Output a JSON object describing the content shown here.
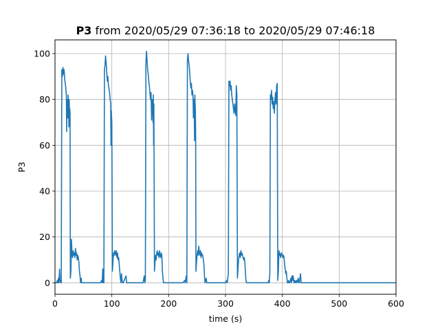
{
  "chart_data": {
    "type": "line",
    "title": {
      "bold": "P3",
      "rest": " from 2020/05/29 07:36:18 to 2020/05/29 07:46:18"
    },
    "xlabel": "time (s)",
    "ylabel": "P3",
    "xlim": [
      0,
      600
    ],
    "ylim": [
      -5,
      106
    ],
    "xticks": [
      0,
      100,
      200,
      300,
      400,
      500,
      600
    ],
    "yticks": [
      0,
      20,
      40,
      60,
      80,
      100
    ],
    "grid": true,
    "line_color": "#1f77b4",
    "series": [
      {
        "points": [
          [
            0,
            0
          ],
          [
            3,
            0
          ],
          [
            4,
            1
          ],
          [
            5,
            0
          ],
          [
            6,
            2
          ],
          [
            7,
            0
          ],
          [
            8,
            6
          ],
          [
            9,
            1
          ],
          [
            10,
            0
          ],
          [
            11,
            0
          ],
          [
            12,
            93
          ],
          [
            13,
            90
          ],
          [
            14,
            94
          ],
          [
            15,
            91
          ],
          [
            16,
            93
          ],
          [
            17,
            89
          ],
          [
            18,
            87
          ],
          [
            19,
            85
          ],
          [
            20,
            82
          ],
          [
            20.5,
            66
          ],
          [
            21,
            80
          ],
          [
            22,
            78
          ],
          [
            22.5,
            72
          ],
          [
            23,
            82
          ],
          [
            24,
            75
          ],
          [
            24.5,
            68
          ],
          [
            25,
            80
          ],
          [
            25.5,
            73
          ],
          [
            26,
            76
          ],
          [
            26.5,
            74
          ],
          [
            27,
            2
          ],
          [
            28,
            5
          ],
          [
            29,
            19
          ],
          [
            30,
            12
          ],
          [
            31,
            11
          ],
          [
            32,
            14
          ],
          [
            33,
            12
          ],
          [
            34,
            13
          ],
          [
            35,
            11
          ],
          [
            36,
            15
          ],
          [
            37,
            12
          ],
          [
            38,
            13
          ],
          [
            39,
            10
          ],
          [
            40,
            12
          ],
          [
            41,
            11
          ],
          [
            42,
            9
          ],
          [
            43,
            5
          ],
          [
            44,
            3
          ],
          [
            45,
            0
          ],
          [
            46,
            2
          ],
          [
            47,
            0
          ],
          [
            50,
            0
          ],
          [
            55,
            0
          ],
          [
            60,
            0
          ],
          [
            65,
            0
          ],
          [
            70,
            0
          ],
          [
            75,
            0
          ],
          [
            80,
            0
          ],
          [
            82,
            1
          ],
          [
            83,
            0
          ],
          [
            84,
            6
          ],
          [
            85,
            0
          ],
          [
            86,
            0
          ],
          [
            87,
            93
          ],
          [
            88,
            95
          ],
          [
            89,
            99
          ],
          [
            90,
            96
          ],
          [
            91,
            92
          ],
          [
            92,
            88
          ],
          [
            93,
            90
          ],
          [
            94,
            86
          ],
          [
            95,
            85
          ],
          [
            96,
            83
          ],
          [
            97,
            80
          ],
          [
            98,
            78
          ],
          [
            98.5,
            60
          ],
          [
            99,
            75
          ],
          [
            100,
            70
          ],
          [
            101,
            5
          ],
          [
            102,
            9
          ],
          [
            103,
            13
          ],
          [
            104,
            12
          ],
          [
            105,
            14
          ],
          [
            106,
            13
          ],
          [
            107,
            12
          ],
          [
            108,
            14
          ],
          [
            109,
            11
          ],
          [
            110,
            13
          ],
          [
            111,
            10
          ],
          [
            112,
            11
          ],
          [
            113,
            8
          ],
          [
            114,
            5
          ],
          [
            115,
            2
          ],
          [
            116,
            0
          ],
          [
            117,
            4
          ],
          [
            118,
            1
          ],
          [
            119,
            0
          ],
          [
            120,
            0
          ],
          [
            125,
            3
          ],
          [
            126,
            0
          ],
          [
            130,
            0
          ],
          [
            135,
            0
          ],
          [
            140,
            0
          ],
          [
            145,
            0
          ],
          [
            150,
            0
          ],
          [
            155,
            0
          ],
          [
            157,
            3
          ],
          [
            158,
            0
          ],
          [
            159,
            1
          ],
          [
            160,
            96
          ],
          [
            161,
            101
          ],
          [
            162,
            97
          ],
          [
            163,
            93
          ],
          [
            164,
            91
          ],
          [
            165,
            88
          ],
          [
            166,
            86
          ],
          [
            167,
            83
          ],
          [
            168,
            80
          ],
          [
            169,
            83
          ],
          [
            170,
            71
          ],
          [
            171,
            80
          ],
          [
            172,
            76
          ],
          [
            172.5,
            70
          ],
          [
            173,
            82
          ],
          [
            173.5,
            60
          ],
          [
            174,
            78
          ],
          [
            175,
            5
          ],
          [
            176,
            9
          ],
          [
            177,
            12
          ],
          [
            178,
            10
          ],
          [
            179,
            13
          ],
          [
            180,
            14
          ],
          [
            181,
            12
          ],
          [
            182,
            13
          ],
          [
            183,
            11
          ],
          [
            184,
            14
          ],
          [
            185,
            12
          ],
          [
            186,
            11
          ],
          [
            187,
            13
          ],
          [
            188,
            12
          ],
          [
            189,
            5
          ],
          [
            190,
            2
          ],
          [
            191,
            0
          ],
          [
            195,
            0
          ],
          [
            200,
            0
          ],
          [
            205,
            0
          ],
          [
            210,
            0
          ],
          [
            215,
            0
          ],
          [
            220,
            0
          ],
          [
            225,
            0
          ],
          [
            228,
            1
          ],
          [
            229,
            0
          ],
          [
            231,
            3
          ],
          [
            232,
            0
          ],
          [
            233,
            97
          ],
          [
            234,
            100
          ],
          [
            235,
            97
          ],
          [
            236,
            95
          ],
          [
            237,
            92
          ],
          [
            238,
            88
          ],
          [
            239,
            85
          ],
          [
            240,
            87
          ],
          [
            241,
            82
          ],
          [
            242,
            84
          ],
          [
            243,
            80
          ],
          [
            243.5,
            72
          ],
          [
            244,
            80
          ],
          [
            245,
            78
          ],
          [
            245.5,
            62
          ],
          [
            246,
            82
          ],
          [
            247,
            75
          ],
          [
            247.5,
            65
          ],
          [
            248,
            5
          ],
          [
            249,
            9
          ],
          [
            250,
            12
          ],
          [
            251,
            14
          ],
          [
            252,
            12
          ],
          [
            253,
            16
          ],
          [
            254,
            13
          ],
          [
            255,
            12
          ],
          [
            256,
            14
          ],
          [
            257,
            11
          ],
          [
            258,
            13
          ],
          [
            259,
            12
          ],
          [
            260,
            12
          ],
          [
            261,
            10
          ],
          [
            262,
            8
          ],
          [
            263,
            3
          ],
          [
            264,
            0
          ],
          [
            266,
            2
          ],
          [
            267,
            0
          ],
          [
            270,
            0
          ],
          [
            275,
            0
          ],
          [
            280,
            0
          ],
          [
            285,
            0
          ],
          [
            290,
            0
          ],
          [
            295,
            0
          ],
          [
            300,
            0
          ],
          [
            302,
            1
          ],
          [
            303,
            0
          ],
          [
            305,
            4
          ],
          [
            306,
            88
          ],
          [
            307,
            86
          ],
          [
            308,
            88
          ],
          [
            309,
            84
          ],
          [
            310,
            86
          ],
          [
            311,
            82
          ],
          [
            312,
            80
          ],
          [
            313,
            78
          ],
          [
            314,
            76
          ],
          [
            315,
            74
          ],
          [
            316,
            78
          ],
          [
            317,
            75
          ],
          [
            318,
            73
          ],
          [
            319,
            86
          ],
          [
            320,
            82
          ],
          [
            321,
            2
          ],
          [
            322,
            6
          ],
          [
            323,
            10
          ],
          [
            324,
            12
          ],
          [
            325,
            13
          ],
          [
            326,
            11
          ],
          [
            327,
            14
          ],
          [
            328,
            12
          ],
          [
            329,
            13
          ],
          [
            330,
            12
          ],
          [
            331,
            11
          ],
          [
            332,
            10
          ],
          [
            333,
            11
          ],
          [
            334,
            9
          ],
          [
            335,
            5
          ],
          [
            336,
            1
          ],
          [
            337,
            0
          ],
          [
            340,
            0
          ],
          [
            345,
            0
          ],
          [
            350,
            0
          ],
          [
            355,
            0
          ],
          [
            360,
            0
          ],
          [
            365,
            0
          ],
          [
            370,
            0
          ],
          [
            375,
            0
          ],
          [
            376,
            1
          ],
          [
            377,
            0
          ],
          [
            378,
            4
          ],
          [
            379,
            82
          ],
          [
            380,
            80
          ],
          [
            381,
            84
          ],
          [
            382,
            78
          ],
          [
            383,
            81
          ],
          [
            384,
            76
          ],
          [
            385,
            79
          ],
          [
            386,
            74
          ],
          [
            387,
            80
          ],
          [
            388,
            83
          ],
          [
            389,
            78
          ],
          [
            390,
            86
          ],
          [
            391,
            87
          ],
          [
            392,
            1
          ],
          [
            393,
            5
          ],
          [
            394,
            14
          ],
          [
            395,
            12
          ],
          [
            396,
            13
          ],
          [
            397,
            11
          ],
          [
            398,
            12
          ],
          [
            399,
            13
          ],
          [
            400,
            12
          ],
          [
            401,
            11
          ],
          [
            402,
            12
          ],
          [
            403,
            11
          ],
          [
            404,
            8
          ],
          [
            405,
            6
          ],
          [
            406,
            4
          ],
          [
            407,
            5
          ],
          [
            408,
            2
          ],
          [
            409,
            0
          ],
          [
            410,
            0
          ],
          [
            411,
            1
          ],
          [
            412,
            0
          ],
          [
            413,
            0
          ],
          [
            414,
            1
          ],
          [
            415,
            2
          ],
          [
            416,
            0
          ],
          [
            417,
            3
          ],
          [
            418,
            1
          ],
          [
            419,
            3
          ],
          [
            420,
            1
          ],
          [
            421,
            0
          ],
          [
            422,
            1
          ],
          [
            423,
            0
          ],
          [
            425,
            1
          ],
          [
            426,
            0
          ],
          [
            428,
            2
          ],
          [
            429,
            0
          ],
          [
            430,
            0
          ],
          [
            432,
            4
          ],
          [
            433,
            0
          ],
          [
            440,
            0
          ],
          [
            450,
            0
          ],
          [
            460,
            0
          ],
          [
            470,
            0
          ],
          [
            480,
            0
          ],
          [
            490,
            0
          ],
          [
            500,
            0
          ],
          [
            510,
            0
          ],
          [
            520,
            0
          ],
          [
            530,
            0
          ],
          [
            540,
            0
          ],
          [
            550,
            0
          ],
          [
            560,
            0
          ],
          [
            570,
            0
          ],
          [
            580,
            0
          ],
          [
            590,
            0
          ],
          [
            600,
            0
          ]
        ]
      }
    ]
  }
}
